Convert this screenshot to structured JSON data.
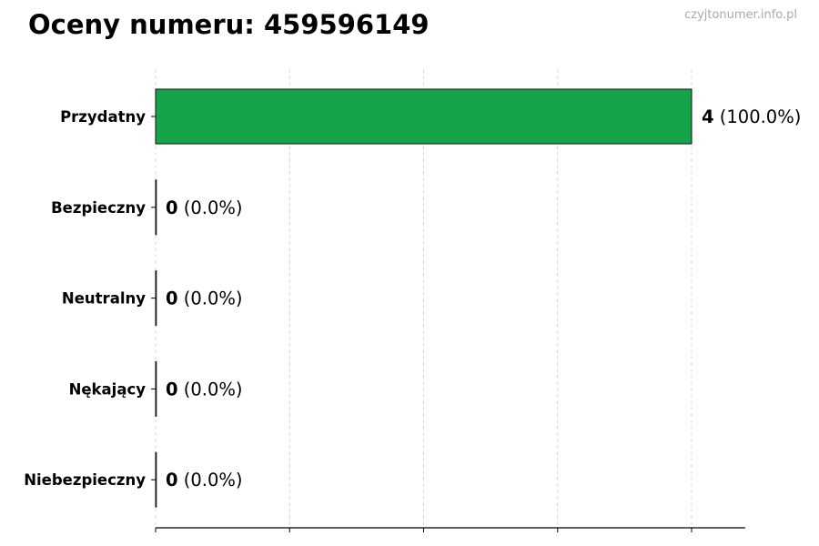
{
  "chart_data": {
    "type": "bar",
    "orientation": "horizontal",
    "title": "Oceny numeru: 459596149",
    "watermark": "czyjtonumer.info.pl",
    "categories": [
      "Przydatny",
      "Bezpieczny",
      "Neutralny",
      "Nękający",
      "Niebezpieczny"
    ],
    "values": [
      4,
      0,
      0,
      0,
      0
    ],
    "data_labels": [
      {
        "count": "4",
        "percent": "(100.0%)"
      },
      {
        "count": "0",
        "percent": "(0.0%)"
      },
      {
        "count": "0",
        "percent": "(0.0%)"
      },
      {
        "count": "0",
        "percent": "(0.0%)"
      },
      {
        "count": "0",
        "percent": "(0.0%)"
      }
    ],
    "bar_color": "#16a34a",
    "xlim": [
      0,
      4.4
    ],
    "x_grid_ticks": [
      0,
      1,
      2,
      3,
      4
    ],
    "grid": true,
    "xlabel": "",
    "ylabel": ""
  }
}
